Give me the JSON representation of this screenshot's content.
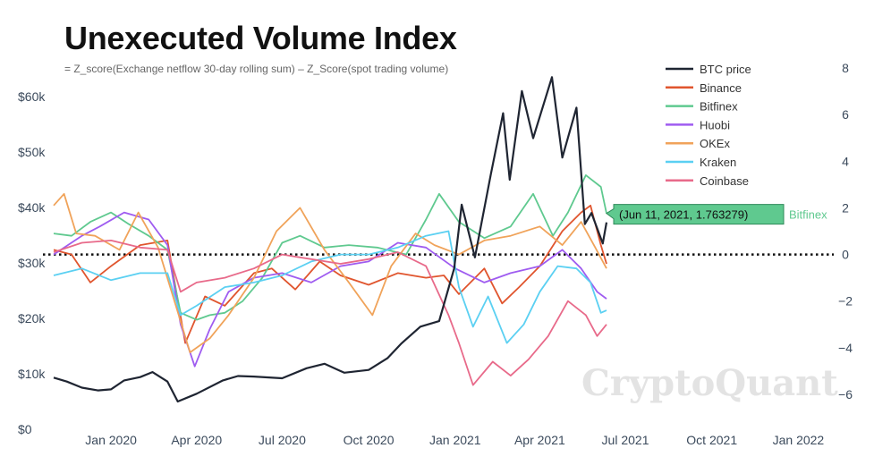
{
  "chart_data": {
    "type": "line",
    "title": "Unexecuted Volume Index",
    "subtitle": "= Z_score(Exchange netflow 30-day rolling sum) – Z_Score(spot trading volume)",
    "x_ticks": [
      "Jan 2020",
      "Apr 2020",
      "Jul 2020",
      "Oct 2020",
      "Jan 2021",
      "Apr 2021",
      "Jul 2021",
      "Oct 2021",
      "Jan 2022"
    ],
    "y_left_ticks": [
      "$0",
      "$10k",
      "$20k",
      "$30k",
      "$40k",
      "$50k",
      "$60k"
    ],
    "y_left_range": [
      0,
      66000
    ],
    "y_right_ticks": [
      "8",
      "6",
      "4",
      "2",
      "0",
      "−2",
      "−4",
      "−6"
    ],
    "y_right_range": [
      -7,
      8
    ],
    "x_range": [
      "2019-11-01",
      "2022-02-01"
    ],
    "grid": false,
    "legend_position": "top-right",
    "zero_line": "dotted",
    "watermark": "CryptoQuant",
    "tooltip": {
      "text": "(Jun 11, 2021, 1.763279)",
      "series": "Bitfinex",
      "x": "2021-06-11",
      "y": 1.763279,
      "color": "#5fc98f"
    },
    "series": [
      {
        "name": "BTC price",
        "axis": "left",
        "color": "#1f2532",
        "points": [
          [
            "2019-11-01",
            9300
          ],
          [
            "2019-11-15",
            8600
          ],
          [
            "2019-12-01",
            7500
          ],
          [
            "2019-12-18",
            7000
          ],
          [
            "2020-01-01",
            7200
          ],
          [
            "2020-01-15",
            8800
          ],
          [
            "2020-02-01",
            9400
          ],
          [
            "2020-02-14",
            10300
          ],
          [
            "2020-03-01",
            8600
          ],
          [
            "2020-03-12",
            5000
          ],
          [
            "2020-04-01",
            6400
          ],
          [
            "2020-04-29",
            8800
          ],
          [
            "2020-05-15",
            9600
          ],
          [
            "2020-06-01",
            9500
          ],
          [
            "2020-07-01",
            9200
          ],
          [
            "2020-07-27",
            11000
          ],
          [
            "2020-08-15",
            11800
          ],
          [
            "2020-09-05",
            10200
          ],
          [
            "2020-10-01",
            10700
          ],
          [
            "2020-10-21",
            12800
          ],
          [
            "2020-11-05",
            15500
          ],
          [
            "2020-11-25",
            18500
          ],
          [
            "2020-12-15",
            19500
          ],
          [
            "2020-12-31",
            29000
          ],
          [
            "2021-01-08",
            40500
          ],
          [
            "2021-01-22",
            31000
          ],
          [
            "2021-02-08",
            46000
          ],
          [
            "2021-02-21",
            57000
          ],
          [
            "2021-02-28",
            45000
          ],
          [
            "2021-03-13",
            61000
          ],
          [
            "2021-03-25",
            52500
          ],
          [
            "2021-04-14",
            63500
          ],
          [
            "2021-04-25",
            49000
          ],
          [
            "2021-05-10",
            58000
          ],
          [
            "2021-05-19",
            37000
          ],
          [
            "2021-05-26",
            39000
          ],
          [
            "2021-06-07",
            33500
          ],
          [
            "2021-06-11",
            37300
          ]
        ]
      },
      {
        "name": "Binance",
        "axis": "right",
        "color": "#e0552e",
        "points": [
          [
            "2019-11-01",
            0.2
          ],
          [
            "2019-11-20",
            0.0
          ],
          [
            "2019-12-10",
            -1.2
          ],
          [
            "2020-01-01",
            -0.5
          ],
          [
            "2020-02-01",
            0.4
          ],
          [
            "2020-03-01",
            0.6
          ],
          [
            "2020-03-10",
            -1.5
          ],
          [
            "2020-03-20",
            -3.8
          ],
          [
            "2020-04-10",
            -1.8
          ],
          [
            "2020-05-01",
            -2.2
          ],
          [
            "2020-06-01",
            -0.8
          ],
          [
            "2020-06-20",
            -0.6
          ],
          [
            "2020-07-15",
            -1.5
          ],
          [
            "2020-08-10",
            -0.3
          ],
          [
            "2020-09-01",
            -0.9
          ],
          [
            "2020-10-01",
            -1.3
          ],
          [
            "2020-11-01",
            -0.8
          ],
          [
            "2020-12-01",
            -1.0
          ],
          [
            "2020-12-20",
            -0.9
          ],
          [
            "2021-01-05",
            -1.7
          ],
          [
            "2021-02-01",
            -0.6
          ],
          [
            "2021-02-20",
            -2.1
          ],
          [
            "2021-03-10",
            -1.4
          ],
          [
            "2021-04-01",
            -0.5
          ],
          [
            "2021-04-25",
            1.0
          ],
          [
            "2021-05-15",
            1.8
          ],
          [
            "2021-05-25",
            2.1
          ],
          [
            "2021-06-05",
            0.4
          ],
          [
            "2021-06-11",
            -0.4
          ]
        ]
      },
      {
        "name": "Bitfinex",
        "axis": "right",
        "color": "#5fc98f",
        "points": [
          [
            "2019-11-01",
            0.9
          ],
          [
            "2019-11-20",
            0.8
          ],
          [
            "2019-12-10",
            1.4
          ],
          [
            "2020-01-01",
            1.8
          ],
          [
            "2020-01-20",
            1.3
          ],
          [
            "2020-02-10",
            0.8
          ],
          [
            "2020-03-01",
            0.2
          ],
          [
            "2020-03-15",
            -2.5
          ],
          [
            "2020-04-01",
            -2.8
          ],
          [
            "2020-04-15",
            -2.6
          ],
          [
            "2020-05-01",
            -2.5
          ],
          [
            "2020-05-20",
            -2.0
          ],
          [
            "2020-06-10",
            -1.0
          ],
          [
            "2020-07-01",
            0.5
          ],
          [
            "2020-07-20",
            0.8
          ],
          [
            "2020-08-15",
            0.3
          ],
          [
            "2020-09-10",
            0.4
          ],
          [
            "2020-10-10",
            0.3
          ],
          [
            "2020-11-10",
            0.0
          ],
          [
            "2020-12-01",
            1.5
          ],
          [
            "2020-12-15",
            2.6
          ],
          [
            "2021-01-05",
            1.4
          ],
          [
            "2021-02-01",
            0.7
          ],
          [
            "2021-03-01",
            1.2
          ],
          [
            "2021-03-25",
            2.6
          ],
          [
            "2021-04-15",
            0.8
          ],
          [
            "2021-05-01",
            1.8
          ],
          [
            "2021-05-20",
            3.4
          ],
          [
            "2021-06-05",
            2.9
          ],
          [
            "2021-06-11",
            1.763279
          ]
        ]
      },
      {
        "name": "Huobi",
        "axis": "right",
        "color": "#9f5cf0",
        "points": [
          [
            "2019-11-01",
            0.0
          ],
          [
            "2019-12-01",
            0.8
          ],
          [
            "2019-12-20",
            1.2
          ],
          [
            "2020-01-15",
            1.8
          ],
          [
            "2020-02-10",
            1.5
          ],
          [
            "2020-03-01",
            0.4
          ],
          [
            "2020-03-15",
            -3.0
          ],
          [
            "2020-03-30",
            -4.8
          ],
          [
            "2020-04-15",
            -3.2
          ],
          [
            "2020-05-05",
            -1.6
          ],
          [
            "2020-06-01",
            -1.0
          ],
          [
            "2020-07-01",
            -0.8
          ],
          [
            "2020-08-01",
            -1.2
          ],
          [
            "2020-09-01",
            -0.5
          ],
          [
            "2020-10-01",
            -0.3
          ],
          [
            "2020-11-01",
            0.5
          ],
          [
            "2020-12-01",
            0.3
          ],
          [
            "2021-01-01",
            -0.6
          ],
          [
            "2021-02-01",
            -1.2
          ],
          [
            "2021-03-01",
            -0.8
          ],
          [
            "2021-04-01",
            -0.5
          ],
          [
            "2021-04-25",
            0.2
          ],
          [
            "2021-05-15",
            -0.6
          ],
          [
            "2021-06-01",
            -1.6
          ],
          [
            "2021-06-11",
            -1.9
          ]
        ]
      },
      {
        "name": "OKEx",
        "axis": "right",
        "color": "#f0a35a",
        "points": [
          [
            "2019-11-01",
            2.1
          ],
          [
            "2019-11-12",
            2.6
          ],
          [
            "2019-11-25",
            0.9
          ],
          [
            "2019-12-15",
            0.8
          ],
          [
            "2020-01-10",
            0.2
          ],
          [
            "2020-01-30",
            1.8
          ],
          [
            "2020-02-20",
            0.3
          ],
          [
            "2020-03-10",
            -2.2
          ],
          [
            "2020-03-25",
            -4.2
          ],
          [
            "2020-04-15",
            -3.6
          ],
          [
            "2020-05-05",
            -2.6
          ],
          [
            "2020-06-01",
            -1.0
          ],
          [
            "2020-06-25",
            1.0
          ],
          [
            "2020-07-20",
            2.0
          ],
          [
            "2020-08-15",
            0.2
          ],
          [
            "2020-09-10",
            -1.2
          ],
          [
            "2020-10-05",
            -2.6
          ],
          [
            "2020-10-25",
            -0.5
          ],
          [
            "2020-11-20",
            0.9
          ],
          [
            "2020-12-10",
            0.4
          ],
          [
            "2021-01-05",
            0.0
          ],
          [
            "2021-02-01",
            0.6
          ],
          [
            "2021-03-01",
            0.8
          ],
          [
            "2021-04-01",
            1.2
          ],
          [
            "2021-04-25",
            0.4
          ],
          [
            "2021-05-15",
            1.4
          ],
          [
            "2021-05-30",
            0.3
          ],
          [
            "2021-06-11",
            -0.6
          ]
        ]
      },
      {
        "name": "Kraken",
        "axis": "right",
        "color": "#5bd0f2",
        "points": [
          [
            "2019-11-01",
            -0.9
          ],
          [
            "2019-12-01",
            -0.6
          ],
          [
            "2020-01-01",
            -1.1
          ],
          [
            "2020-02-01",
            -0.8
          ],
          [
            "2020-03-01",
            -0.8
          ],
          [
            "2020-03-15",
            -2.6
          ],
          [
            "2020-04-01",
            -2.2
          ],
          [
            "2020-05-01",
            -1.4
          ],
          [
            "2020-06-01",
            -1.2
          ],
          [
            "2020-07-01",
            -0.9
          ],
          [
            "2020-08-01",
            -0.3
          ],
          [
            "2020-09-01",
            0.0
          ],
          [
            "2020-10-01",
            0.0
          ],
          [
            "2020-11-01",
            0.3
          ],
          [
            "2020-12-01",
            0.8
          ],
          [
            "2020-12-25",
            1.0
          ],
          [
            "2021-01-05",
            -1.4
          ],
          [
            "2021-01-20",
            -3.1
          ],
          [
            "2021-02-05",
            -1.8
          ],
          [
            "2021-02-25",
            -3.8
          ],
          [
            "2021-03-15",
            -3.0
          ],
          [
            "2021-04-01",
            -1.6
          ],
          [
            "2021-04-20",
            -0.5
          ],
          [
            "2021-05-10",
            -0.6
          ],
          [
            "2021-05-25",
            -1.2
          ],
          [
            "2021-06-05",
            -2.5
          ],
          [
            "2021-06-11",
            -2.4
          ]
        ]
      },
      {
        "name": "Coinbase",
        "axis": "right",
        "color": "#e86a8a",
        "points": [
          [
            "2019-11-01",
            0.1
          ],
          [
            "2019-12-01",
            0.5
          ],
          [
            "2020-01-01",
            0.6
          ],
          [
            "2020-02-01",
            0.3
          ],
          [
            "2020-03-01",
            0.2
          ],
          [
            "2020-03-15",
            -1.6
          ],
          [
            "2020-04-01",
            -1.2
          ],
          [
            "2020-05-01",
            -1.0
          ],
          [
            "2020-06-01",
            -0.6
          ],
          [
            "2020-07-01",
            0.0
          ],
          [
            "2020-08-01",
            -0.2
          ],
          [
            "2020-09-01",
            -0.4
          ],
          [
            "2020-10-01",
            -0.2
          ],
          [
            "2020-11-01",
            0.1
          ],
          [
            "2020-12-01",
            -0.5
          ],
          [
            "2020-12-25",
            -2.6
          ],
          [
            "2021-01-05",
            -3.8
          ],
          [
            "2021-01-20",
            -5.6
          ],
          [
            "2021-02-10",
            -4.6
          ],
          [
            "2021-03-01",
            -5.2
          ],
          [
            "2021-03-20",
            -4.5
          ],
          [
            "2021-04-10",
            -3.5
          ],
          [
            "2021-05-01",
            -2.0
          ],
          [
            "2021-05-20",
            -2.6
          ],
          [
            "2021-06-01",
            -3.5
          ],
          [
            "2021-06-11",
            -3.0
          ]
        ]
      }
    ]
  }
}
